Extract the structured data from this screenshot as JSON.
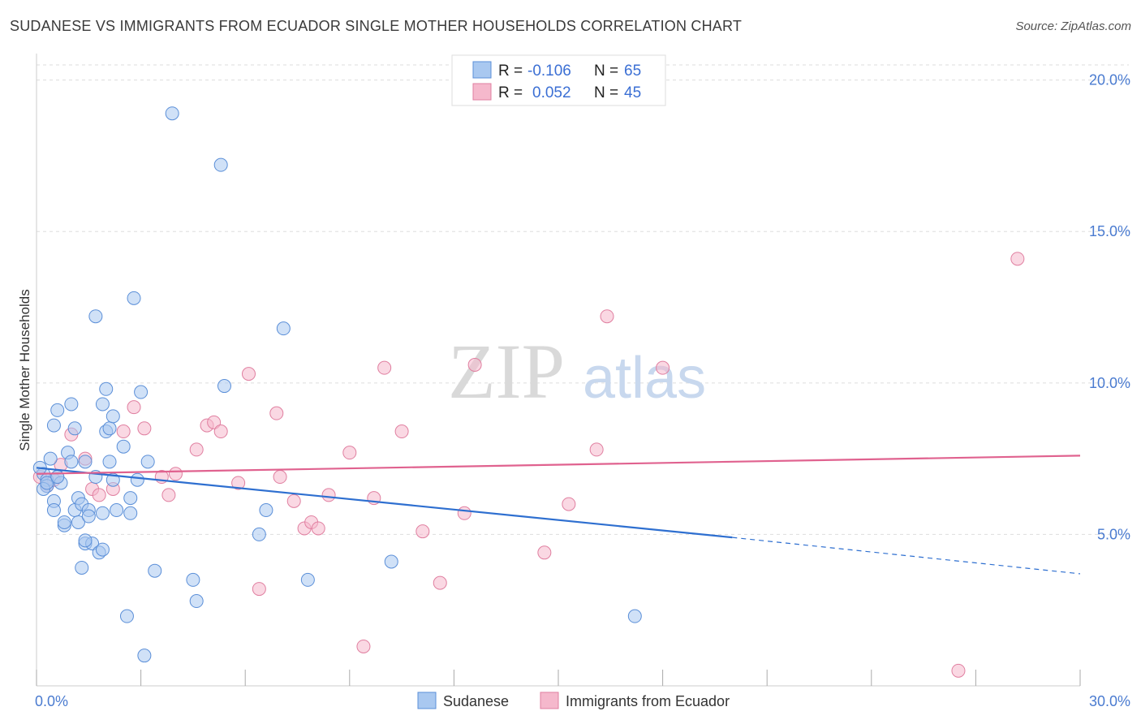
{
  "header": {
    "title": "SUDANESE VS IMMIGRANTS FROM ECUADOR SINGLE MOTHER HOUSEHOLDS CORRELATION CHART",
    "source": "Source: ZipAtlas.com"
  },
  "legend_box": {
    "rows": [
      {
        "r_label": "R =",
        "r_value": "-0.106",
        "n_label": "N =",
        "n_value": "65"
      },
      {
        "r_label": "R =",
        "r_value": "0.052",
        "n_label": "N =",
        "n_value": "45"
      }
    ]
  },
  "watermark": {
    "part1": "ZIP",
    "part2": "atlas"
  },
  "colors": {
    "series_blue_fill": "#a9c8f0",
    "series_blue_stroke": "#5b8fd8",
    "series_blue_line": "#2e6fd0",
    "series_pink_fill": "#f5b8cc",
    "series_pink_stroke": "#e07fa0",
    "series_pink_line": "#e0628f",
    "grid": "#dddddd",
    "tick_label": "#4a7bd0"
  },
  "chart_data": {
    "type": "scatter",
    "title": "SUDANESE VS IMMIGRANTS FROM ECUADOR SINGLE MOTHER HOUSEHOLDS CORRELATION CHART",
    "xlabel": "",
    "ylabel": "Single Mother Households",
    "xlim": [
      0,
      30
    ],
    "ylim": [
      0,
      20.5
    ],
    "x_tick_labels": [
      "0.0%",
      "30.0%"
    ],
    "y_ticks": [
      5,
      10,
      15,
      20
    ],
    "y_tick_labels": [
      "5.0%",
      "10.0%",
      "15.0%",
      "20.0%"
    ],
    "grid": true,
    "legend_position": "top-center",
    "series": [
      {
        "name": "Sudanese",
        "color": "#a9c8f0",
        "R": -0.106,
        "N": 65,
        "trend": {
          "x0": 0.0,
          "y0": 7.2,
          "x1": 20.0,
          "y1": 4.9,
          "dashed_to_x": 30.0,
          "dashed_to_y": 3.7
        },
        "points": [
          [
            0.2,
            7.0
          ],
          [
            0.3,
            6.8
          ],
          [
            0.3,
            6.6
          ],
          [
            0.4,
            7.5
          ],
          [
            0.5,
            8.6
          ],
          [
            0.5,
            6.1
          ],
          [
            0.5,
            5.8
          ],
          [
            0.6,
            9.1
          ],
          [
            0.6,
            6.9
          ],
          [
            0.7,
            6.7
          ],
          [
            0.8,
            5.3
          ],
          [
            0.8,
            5.4
          ],
          [
            0.9,
            7.7
          ],
          [
            1.0,
            9.3
          ],
          [
            1.0,
            7.4
          ],
          [
            1.1,
            8.5
          ],
          [
            1.1,
            5.8
          ],
          [
            1.2,
            6.2
          ],
          [
            1.2,
            5.4
          ],
          [
            1.3,
            6.0
          ],
          [
            1.3,
            3.9
          ],
          [
            1.4,
            4.7
          ],
          [
            1.4,
            7.4
          ],
          [
            1.5,
            5.8
          ],
          [
            1.5,
            5.6
          ],
          [
            1.6,
            4.7
          ],
          [
            1.7,
            12.2
          ],
          [
            1.7,
            6.9
          ],
          [
            1.8,
            4.4
          ],
          [
            1.9,
            4.5
          ],
          [
            1.9,
            9.3
          ],
          [
            1.9,
            5.7
          ],
          [
            2.0,
            8.4
          ],
          [
            2.0,
            9.8
          ],
          [
            2.1,
            7.4
          ],
          [
            2.1,
            8.5
          ],
          [
            2.2,
            8.9
          ],
          [
            2.2,
            6.8
          ],
          [
            2.3,
            5.8
          ],
          [
            2.5,
            7.9
          ],
          [
            2.6,
            2.3
          ],
          [
            2.7,
            5.7
          ],
          [
            2.7,
            6.2
          ],
          [
            2.8,
            12.8
          ],
          [
            2.9,
            6.8
          ],
          [
            3.0,
            9.7
          ],
          [
            3.1,
            1.0
          ],
          [
            3.2,
            7.4
          ],
          [
            3.4,
            3.8
          ],
          [
            3.9,
            18.9
          ],
          [
            4.5,
            3.5
          ],
          [
            4.6,
            2.8
          ],
          [
            5.3,
            17.2
          ],
          [
            5.4,
            9.9
          ],
          [
            6.4,
            5.0
          ],
          [
            6.6,
            5.8
          ],
          [
            7.1,
            11.8
          ],
          [
            7.8,
            3.5
          ],
          [
            10.2,
            4.1
          ],
          [
            17.2,
            2.3
          ],
          [
            0.1,
            7.2
          ],
          [
            0.2,
            6.5
          ],
          [
            0.3,
            6.7
          ],
          [
            0.6,
            6.9
          ],
          [
            1.4,
            4.8
          ]
        ]
      },
      {
        "name": "Immigrants from Ecuador",
        "color": "#f5b8cc",
        "R": 0.052,
        "N": 45,
        "trend": {
          "x0": 0.0,
          "y0": 7.0,
          "x1": 30.0,
          "y1": 7.6
        },
        "points": [
          [
            0.1,
            6.9
          ],
          [
            0.3,
            6.6
          ],
          [
            0.5,
            6.8
          ],
          [
            0.7,
            7.3
          ],
          [
            1.0,
            8.3
          ],
          [
            1.4,
            7.5
          ],
          [
            1.6,
            6.5
          ],
          [
            1.8,
            6.3
          ],
          [
            2.2,
            6.5
          ],
          [
            2.5,
            8.4
          ],
          [
            2.8,
            9.2
          ],
          [
            3.1,
            8.5
          ],
          [
            3.6,
            6.9
          ],
          [
            3.8,
            6.3
          ],
          [
            4.0,
            7.0
          ],
          [
            4.6,
            7.8
          ],
          [
            4.9,
            8.6
          ],
          [
            5.1,
            8.7
          ],
          [
            5.3,
            8.4
          ],
          [
            5.8,
            6.7
          ],
          [
            6.1,
            10.3
          ],
          [
            6.4,
            3.2
          ],
          [
            6.9,
            9.0
          ],
          [
            7.0,
            6.9
          ],
          [
            7.4,
            6.1
          ],
          [
            7.7,
            5.2
          ],
          [
            7.9,
            5.4
          ],
          [
            8.1,
            5.2
          ],
          [
            8.4,
            6.3
          ],
          [
            9.0,
            7.7
          ],
          [
            9.4,
            1.3
          ],
          [
            9.7,
            6.2
          ],
          [
            10.0,
            10.5
          ],
          [
            10.5,
            8.4
          ],
          [
            11.1,
            5.1
          ],
          [
            11.6,
            3.4
          ],
          [
            12.3,
            5.7
          ],
          [
            12.6,
            10.6
          ],
          [
            14.6,
            4.4
          ],
          [
            15.3,
            6.0
          ],
          [
            16.1,
            7.8
          ],
          [
            16.4,
            12.2
          ],
          [
            18.0,
            10.5
          ],
          [
            26.5,
            0.5
          ],
          [
            28.2,
            14.1
          ]
        ]
      }
    ]
  },
  "bottom_legend": {
    "items": [
      {
        "label": "Sudanese"
      },
      {
        "label": "Immigrants from Ecuador"
      }
    ]
  }
}
